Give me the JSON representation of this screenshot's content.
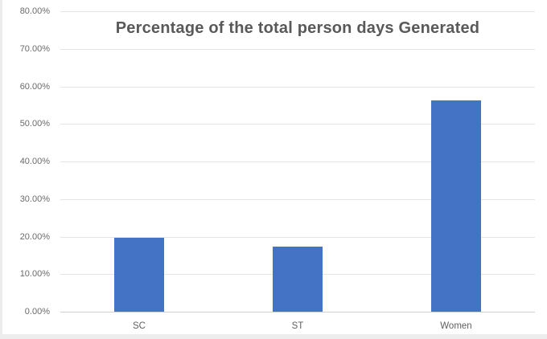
{
  "chart_data": {
    "type": "bar",
    "title": "Percentage of the total person days Generated",
    "categories": [
      "SC",
      "ST",
      "Women"
    ],
    "values": [
      19.7,
      17.3,
      56.3
    ],
    "xlabel": "",
    "ylabel": "",
    "ylim": [
      0,
      80
    ],
    "yticks": [
      {
        "value": 0,
        "label": "0.00%"
      },
      {
        "value": 10,
        "label": "10.00%"
      },
      {
        "value": 20,
        "label": "20.00%"
      },
      {
        "value": 30,
        "label": "30.00%"
      },
      {
        "value": 40,
        "label": "40.00%"
      },
      {
        "value": 50,
        "label": "50.00%"
      },
      {
        "value": 60,
        "label": "60.00%"
      },
      {
        "value": 70,
        "label": "70.00%"
      },
      {
        "value": 80,
        "label": "80.00%"
      }
    ],
    "grid": true,
    "legend": false,
    "bar_color": "#4472C4",
    "title_color": "#595959",
    "gridline_color": "#e4e4e4"
  }
}
